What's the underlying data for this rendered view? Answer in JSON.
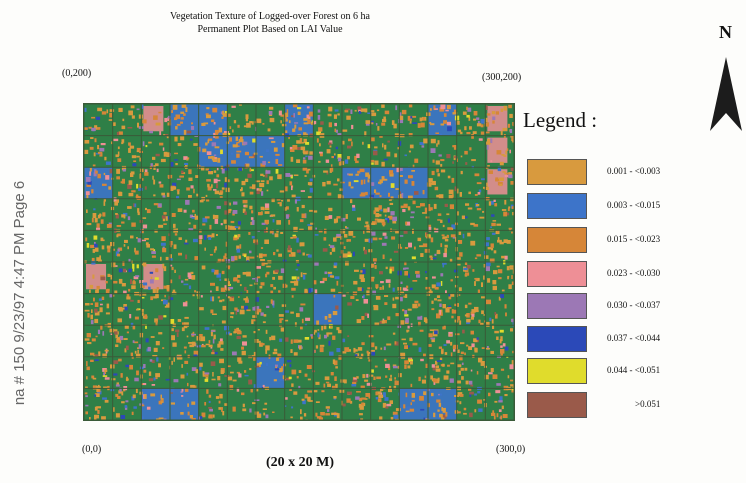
{
  "title": {
    "line1": "Vegetation Texture of Logged-over Forest on 6 ha",
    "line2": "Permanent Plot Based on LAI Value"
  },
  "side_stamp": "na # 150 9/23/97 4:47 PM Page 6",
  "corners": {
    "top_left": "(0,200)",
    "top_right": "(300,200)",
    "bottom_left": "(0,0)",
    "bottom_right": "(300,0)"
  },
  "grid": {
    "columns": 15,
    "rows": 10,
    "cell_size_label": "(20 x 20 M)"
  },
  "legend": {
    "title": "Legend :",
    "items": [
      {
        "label": "0.001 - <0.003",
        "color": "#d89a3e"
      },
      {
        "label": "0.003 - <0.015",
        "color": "#3d74c9"
      },
      {
        "label": "0.015 - <0.023",
        "color": "#d68638"
      },
      {
        "label": "0.023 - <0.030",
        "color": "#ee8f96"
      },
      {
        "label": "0.030 - <0.037",
        "color": "#9c78b5"
      },
      {
        "label": "0.037 - <0.044",
        "color": "#2b49b8"
      },
      {
        "label": "0.044 - <0.051",
        "color": "#e0dc2c"
      },
      {
        "label": ">0.051",
        "color": "#9a5a4a"
      }
    ]
  },
  "north": "N",
  "colors": {
    "vegetation_base": "#2f7f47",
    "gridline": "#3a5a38"
  }
}
